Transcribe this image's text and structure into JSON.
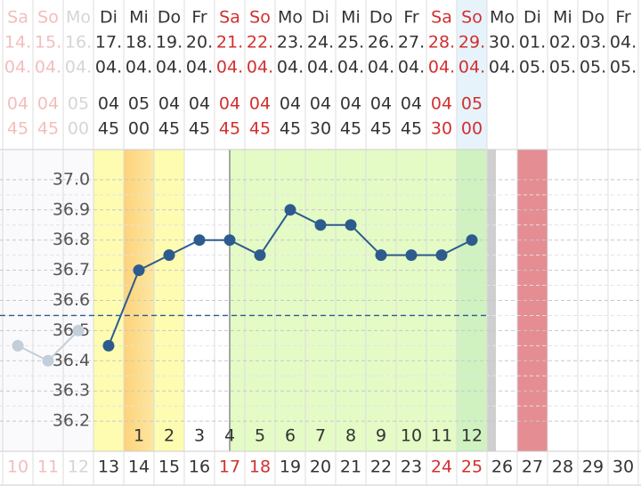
{
  "chart_data": {
    "type": "line",
    "weekdays": [
      "Sa",
      "So",
      "Mo",
      "Di",
      "Mi",
      "Do",
      "Fr",
      "Sa",
      "So",
      "Mo",
      "Di",
      "Mi",
      "Do",
      "Fr",
      "Sa",
      "So",
      "Mo",
      "Di",
      "Mi",
      "Do",
      "Fr"
    ],
    "dates": [
      "14.",
      "15.",
      "16.",
      "17.",
      "18.",
      "19.",
      "20.",
      "21.",
      "22.",
      "23.",
      "24.",
      "25.",
      "26.",
      "27.",
      "28.",
      "29.",
      "30.",
      "01.",
      "02.",
      "03.",
      "04."
    ],
    "months": [
      "04.",
      "04.",
      "04.",
      "04.",
      "04.",
      "04.",
      "04.",
      "04.",
      "04.",
      "04.",
      "04.",
      "04.",
      "04.",
      "04.",
      "04.",
      "04.",
      "04.",
      "05.",
      "05.",
      "05.",
      "05."
    ],
    "hours": [
      "04",
      "04",
      "05",
      "04",
      "05",
      "04",
      "04",
      "04",
      "04",
      "04",
      "04",
      "04",
      "04",
      "04",
      "04",
      "05",
      null,
      null,
      null,
      null,
      null
    ],
    "minutes": [
      "45",
      "45",
      "00",
      "45",
      "00",
      "45",
      "45",
      "45",
      "45",
      "45",
      "30",
      "45",
      "45",
      "45",
      "30",
      "00",
      null,
      null,
      null,
      null,
      null
    ],
    "label_colors": [
      "#f0a8a8",
      "#f0a8a8",
      "#c8c8c8",
      "#333333",
      "#333333",
      "#333333",
      "#333333",
      "#d32f2f",
      "#d32f2f",
      "#333333",
      "#333333",
      "#333333",
      "#333333",
      "#333333",
      "#d32f2f",
      "#d32f2f",
      "#333333",
      "#333333",
      "#333333",
      "#333333",
      "#333333"
    ],
    "cycle_days": [
      null,
      null,
      null,
      null,
      1,
      2,
      3,
      4,
      5,
      6,
      7,
      8,
      9,
      10,
      11,
      12,
      null,
      null,
      null,
      null,
      null
    ],
    "month_days": [
      10,
      11,
      12,
      13,
      14,
      15,
      16,
      17,
      18,
      19,
      20,
      21,
      22,
      23,
      24,
      25,
      26,
      27,
      28,
      29,
      30
    ],
    "series": [
      {
        "color": "#c3cedb",
        "values": [
          36.45,
          36.4,
          36.5,
          null,
          null,
          null,
          null,
          null,
          null,
          null,
          null,
          null,
          null,
          null,
          null,
          null,
          null,
          null,
          null,
          null,
          null
        ]
      },
      {
        "color": "#2e5b8e",
        "values": [
          null,
          null,
          null,
          36.45,
          36.7,
          36.75,
          36.8,
          36.8,
          36.75,
          36.9,
          36.85,
          36.85,
          36.75,
          36.75,
          36.75,
          36.8,
          null,
          null,
          null,
          null,
          null
        ]
      }
    ],
    "cover_line": 36.55,
    "ylim": [
      36.1,
      37.1
    ],
    "yticks": [
      {
        "value": 37.0,
        "label": "37.0"
      },
      36.9,
      36.8,
      36.7,
      36.6,
      36.5,
      36.4,
      36.3,
      36.2
    ],
    "grid": true
  }
}
